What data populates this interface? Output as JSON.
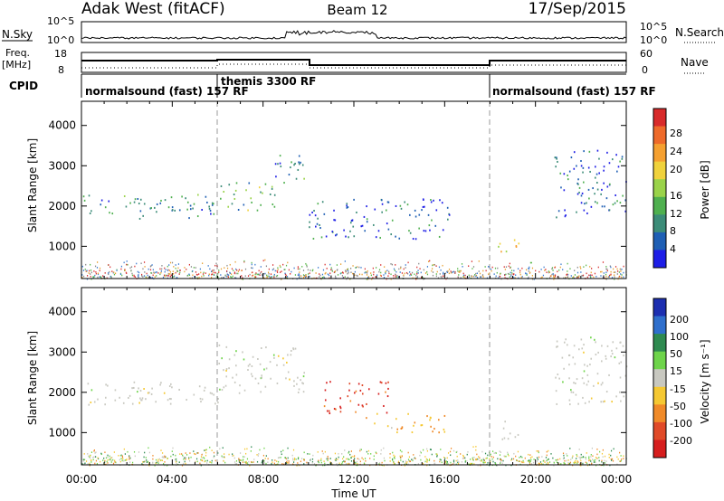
{
  "header": {
    "station": "Adak West (fitACF)",
    "beam": "Beam 12",
    "date": "17/Sep/2015"
  },
  "top_panels": {
    "nsky_label": "N.Sky",
    "nsky_ticks": [
      "10^5",
      "10^0"
    ],
    "nsearch_label": "N.Search",
    "nsearch_ticks": [
      "10^5",
      "10^0"
    ],
    "freq_label": "Freq.",
    "freq_unit": "[MHz]",
    "freq_ticks": [
      "18",
      "8"
    ],
    "nave_label": "Nave",
    "nave_ticks": [
      "60",
      "0"
    ],
    "cpid_label": "CPID",
    "cpid_segments": [
      {
        "label": "normalsound (fast) 157 RF",
        "start": 0,
        "end": 6
      },
      {
        "label": "themis 3300 RF",
        "start": 6,
        "end": 18
      },
      {
        "label": "normalsound (fast) 157 RF",
        "start": 18,
        "end": 24
      }
    ]
  },
  "x_axis": {
    "label": "Time UT",
    "ticks": [
      "00:00",
      "04:00",
      "08:00",
      "12:00",
      "16:00",
      "20:00",
      "00:00"
    ]
  },
  "power_colorbar": {
    "label": "Power [dB]",
    "ticks": [
      "4",
      "8",
      "12",
      "16",
      "20",
      "24",
      "28"
    ],
    "colors": [
      "#1e1ee6",
      "#1f5fb4",
      "#3c8c78",
      "#4fb04f",
      "#9ad34a",
      "#f0d23c",
      "#f5a030",
      "#ee6a2a",
      "#d82a2a"
    ]
  },
  "velocity_colorbar": {
    "label": "Velocity [m s⁻¹]",
    "ticks": [
      "200",
      "100",
      "50",
      "15",
      "-15",
      "-50",
      "-100",
      "-200"
    ],
    "colors": [
      "#1d2fb0",
      "#2f6fcc",
      "#2e8a50",
      "#6ed44a",
      "#c8c8c0",
      "#f5c832",
      "#f08a28",
      "#e04a28",
      "#d61e1e"
    ]
  },
  "chart_data": [
    {
      "type": "heatmap",
      "title": "",
      "xlabel": "Time UT",
      "ylabel": "Slant Range [km]",
      "y_ticks": [
        "1000",
        "2000",
        "3000",
        "4000"
      ],
      "xlim": [
        0,
        24
      ],
      "ylim": [
        200,
        4600
      ],
      "colorbar": "Power [dB]",
      "regions": [
        {
          "t0": 0.0,
          "t1": 6.0,
          "r0": 1700,
          "r1": 2300,
          "value": 12
        },
        {
          "t0": 6.0,
          "t1": 8.5,
          "r0": 1900,
          "r1": 2600,
          "value": 16
        },
        {
          "t0": 8.5,
          "t1": 9.8,
          "r0": 2400,
          "r1": 3300,
          "value": 12
        },
        {
          "t0": 10.0,
          "t1": 16.2,
          "r0": 1200,
          "r1": 2200,
          "value": 8
        },
        {
          "t0": 18.3,
          "t1": 19.3,
          "r0": 800,
          "r1": 1300,
          "value": 20
        },
        {
          "t0": 20.8,
          "t1": 24.0,
          "r0": 1700,
          "r1": 3400,
          "value": 8
        }
      ]
    },
    {
      "type": "heatmap",
      "title": "",
      "xlabel": "Time UT",
      "ylabel": "Slant Range [km]",
      "y_ticks": [
        "1000",
        "2000",
        "3000",
        "4000"
      ],
      "xlim": [
        0,
        24
      ],
      "ylim": [
        200,
        4600
      ],
      "colorbar": "Velocity [m s⁻¹]",
      "regions": [
        {
          "t0": 0.0,
          "t1": 6.0,
          "r0": 1700,
          "r1": 2300,
          "value": 0
        },
        {
          "t0": 6.0,
          "t1": 9.8,
          "r0": 2000,
          "r1": 3200,
          "value": 0
        },
        {
          "t0": 10.5,
          "t1": 13.5,
          "r0": 1500,
          "r1": 2300,
          "value": -150
        },
        {
          "t0": 12.5,
          "t1": 16.0,
          "r0": 1000,
          "r1": 1500,
          "value": -40
        },
        {
          "t0": 18.3,
          "t1": 19.3,
          "r0": 800,
          "r1": 1300,
          "value": 0
        },
        {
          "t0": 20.8,
          "t1": 24.0,
          "r0": 1700,
          "r1": 3400,
          "value": 0
        }
      ]
    }
  ]
}
